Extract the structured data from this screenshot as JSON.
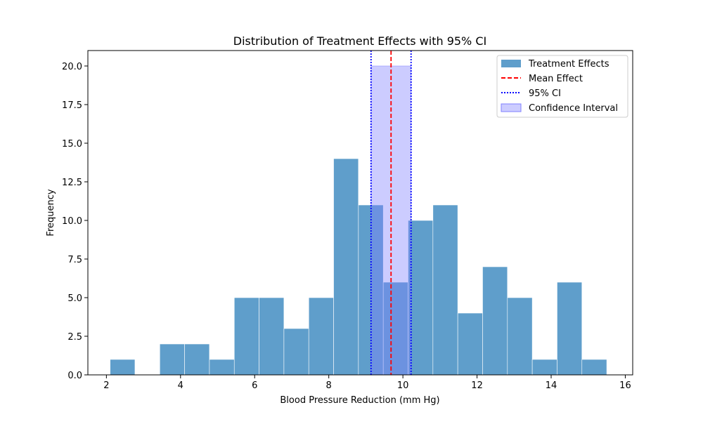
{
  "chart_data": {
    "type": "bar",
    "title": "Distribution of Treatment Effects with 95% CI",
    "xlabel": "Blood Pressure Reduction (mm Hg)",
    "ylabel": "Frequency",
    "xlim": [
      1.5,
      16.2
    ],
    "ylim": [
      0,
      21
    ],
    "xticks": [
      2,
      4,
      6,
      8,
      10,
      12,
      14,
      16
    ],
    "yticks": [
      0.0,
      2.5,
      5.0,
      7.5,
      10.0,
      12.5,
      15.0,
      17.5,
      20.0
    ],
    "ytick_labels": [
      "0.0",
      "2.5",
      "5.0",
      "7.5",
      "10.0",
      "12.5",
      "15.0",
      "17.5",
      "20.0"
    ],
    "grid": false,
    "legend_position": "top-right",
    "histogram": {
      "name": "Treatment Effects",
      "color": "#5f9ecb",
      "bin_edges": [
        2.1,
        2.77,
        3.44,
        4.11,
        4.78,
        5.45,
        6.12,
        6.79,
        7.46,
        8.13,
        8.8,
        9.47,
        10.14,
        10.81,
        11.48,
        12.15,
        12.82,
        13.49,
        14.16,
        14.83,
        15.5
      ],
      "counts": [
        1,
        0,
        2,
        2,
        1,
        5,
        5,
        3,
        5,
        14,
        11,
        6,
        10,
        11,
        4,
        7,
        5,
        1,
        6,
        1
      ]
    },
    "mean_effect": {
      "name": "Mean Effect",
      "value": 9.68,
      "color": "#ff0000"
    },
    "ci_lines": {
      "name": "95% CI",
      "lower": 9.14,
      "upper": 10.22,
      "color": "#0000ff"
    },
    "ci_band": {
      "name": "Confidence Interval",
      "lower": 9.14,
      "upper": 10.22,
      "top": 20,
      "color": "#8080ff"
    },
    "legend": [
      "Treatment Effects",
      "Mean Effect",
      "95% CI",
      "Confidence Interval"
    ]
  }
}
